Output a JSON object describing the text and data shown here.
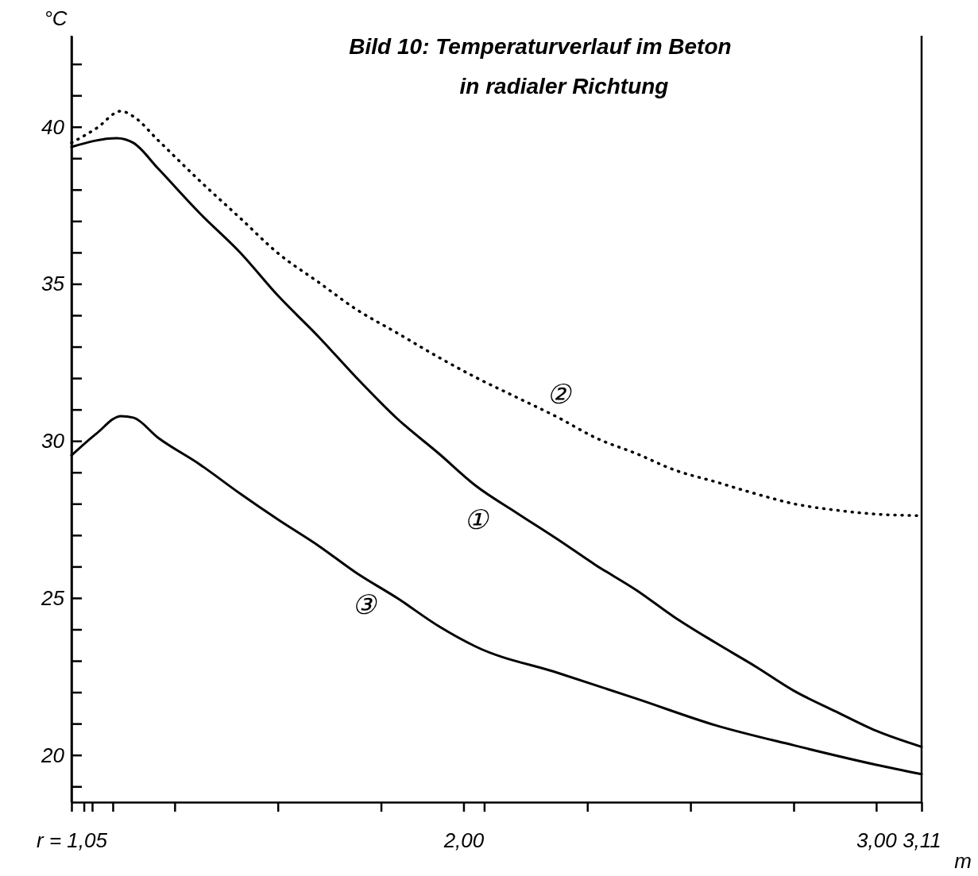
{
  "chart_data": {
    "type": "line",
    "title": "Bild 10: Temperaturverlauf im Beton",
    "subtitle": "in radialer Richtung",
    "ylabel": "°C",
    "xlabel": "m",
    "xlim": [
      1.05,
      3.11
    ],
    "ylim": [
      18.5,
      42.9
    ],
    "xticks": [
      {
        "value": 1.05,
        "label": "r = 1,05"
      },
      {
        "value": 1.08,
        "label": null
      },
      {
        "value": 1.1,
        "label": null
      },
      {
        "value": 1.15,
        "label": null
      },
      {
        "value": 1.3,
        "label": null
      },
      {
        "value": 1.55,
        "label": null
      },
      {
        "value": 1.8,
        "label": null
      },
      {
        "value": 2.0,
        "label": "2,00"
      },
      {
        "value": 2.05,
        "label": null
      },
      {
        "value": 2.3,
        "label": null
      },
      {
        "value": 2.55,
        "label": null
      },
      {
        "value": 2.8,
        "label": null
      },
      {
        "value": 3.0,
        "label": "3,00"
      },
      {
        "value": 3.11,
        "label": "3,11"
      }
    ],
    "yticks": [
      {
        "value": 19,
        "label": null
      },
      20,
      {
        "value": 21,
        "label": null
      },
      {
        "value": 22,
        "label": null
      },
      {
        "value": 23,
        "label": null
      },
      {
        "value": 24,
        "label": null
      },
      25,
      {
        "value": 26,
        "label": null
      },
      {
        "value": 27,
        "label": null
      },
      {
        "value": 28,
        "label": null
      },
      {
        "value": 29,
        "label": null
      },
      30,
      {
        "value": 31,
        "label": null
      },
      {
        "value": 32,
        "label": null
      },
      {
        "value": 33,
        "label": null
      },
      {
        "value": 34,
        "label": null
      },
      35,
      {
        "value": 36,
        "label": null
      },
      {
        "value": 37,
        "label": null
      },
      {
        "value": 38,
        "label": null
      },
      {
        "value": 39,
        "label": null
      },
      40,
      {
        "value": 41,
        "label": null
      },
      {
        "value": 42,
        "label": null
      }
    ],
    "series": [
      {
        "name": "①",
        "color": "#000000",
        "line_style": "solid",
        "x": [
          1.05,
          1.16,
          1.2,
          1.26,
          1.36,
          1.46,
          1.55,
          1.65,
          1.74,
          1.84,
          1.94,
          2.03,
          2.13,
          2.23,
          2.32,
          2.42,
          2.51,
          2.61,
          2.71,
          2.8,
          2.9,
          3.0,
          3.11
        ],
        "values": [
          39.36,
          39.64,
          39.49,
          38.67,
          37.26,
          35.98,
          34.63,
          33.3,
          32.02,
          30.7,
          29.6,
          28.57,
          27.7,
          26.85,
          26.05,
          25.24,
          24.4,
          23.58,
          22.8,
          22.05,
          21.4,
          20.77,
          20.26
        ]
      },
      {
        "name": "②",
        "color": "#000000",
        "line_style": "dotted",
        "x": [
          1.05,
          1.11,
          1.17,
          1.2,
          1.26,
          1.36,
          1.46,
          1.55,
          1.65,
          1.74,
          1.84,
          1.94,
          2.03,
          2.13,
          2.23,
          2.32,
          2.42,
          2.51,
          2.61,
          2.71,
          2.8,
          2.9,
          3.0,
          3.11
        ],
        "values": [
          39.49,
          39.95,
          40.5,
          40.33,
          39.57,
          38.29,
          37.08,
          35.98,
          35.04,
          34.19,
          33.43,
          32.66,
          32.02,
          31.38,
          30.74,
          30.1,
          29.59,
          29.08,
          28.7,
          28.31,
          28.0,
          27.8,
          27.67,
          27.62
        ]
      },
      {
        "name": "③",
        "color": "#000000",
        "line_style": "solid",
        "x": [
          1.05,
          1.11,
          1.17,
          1.2,
          1.26,
          1.36,
          1.46,
          1.55,
          1.65,
          1.74,
          1.84,
          1.94,
          2.03,
          2.23,
          2.42,
          2.61,
          2.8,
          3.0,
          3.11
        ],
        "values": [
          29.54,
          30.23,
          30.79,
          30.74,
          30.1,
          29.26,
          28.31,
          27.5,
          26.65,
          25.8,
          24.99,
          24.1,
          23.45,
          22.61,
          21.79,
          20.95,
          20.31,
          19.69,
          19.39
        ]
      }
    ]
  }
}
